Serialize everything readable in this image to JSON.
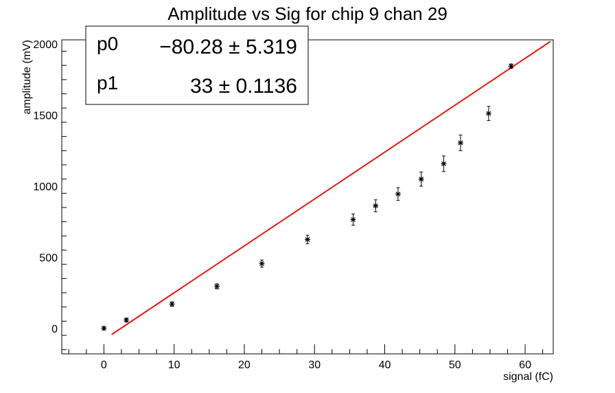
{
  "chart_data": {
    "type": "scatter",
    "title": "Amplitude vs Sig for chip 9 chan 29",
    "xlabel": "signal (fC)",
    "ylabel": "amplitude (mV)",
    "xlim": [
      -6,
      64
    ],
    "ylim": [
      -180,
      2030
    ],
    "x_ticks": [
      0,
      10,
      20,
      30,
      40,
      50,
      60
    ],
    "x_tick_labels": [
      "0",
      "10",
      "20",
      "30",
      "40",
      "50",
      "60"
    ],
    "y_ticks": [
      0,
      500,
      1000,
      1500,
      2000
    ],
    "y_tick_labels": [
      "0",
      "500",
      "1000",
      "1500",
      "2000"
    ],
    "grid": false,
    "series": [
      {
        "type": "scatter-errorbars",
        "marker": "asterisk",
        "color": "#000000",
        "points": [
          {
            "x": 0.0,
            "y": 0,
            "err": 10
          },
          {
            "x": 3.2,
            "y": 58,
            "err": 12
          },
          {
            "x": 9.7,
            "y": 170,
            "err": 15
          },
          {
            "x": 16.1,
            "y": 295,
            "err": 18
          },
          {
            "x": 22.5,
            "y": 455,
            "err": 25
          },
          {
            "x": 29.0,
            "y": 625,
            "err": 30
          },
          {
            "x": 35.5,
            "y": 765,
            "err": 40
          },
          {
            "x": 38.7,
            "y": 862,
            "err": 42
          },
          {
            "x": 41.9,
            "y": 945,
            "err": 45
          },
          {
            "x": 45.2,
            "y": 1050,
            "err": 50
          },
          {
            "x": 48.4,
            "y": 1158,
            "err": 55
          },
          {
            "x": 50.8,
            "y": 1305,
            "err": 55
          },
          {
            "x": 54.8,
            "y": 1512,
            "err": 50
          },
          {
            "x": 58.0,
            "y": 1845,
            "err": 15
          }
        ]
      },
      {
        "type": "fit-line",
        "color": "#e8170f",
        "p0": -80.28,
        "p1": 33,
        "x_range": [
          1.1,
          63.6
        ]
      }
    ],
    "stats_box": {
      "rows": [
        {
          "name": "p0",
          "value": "−80.28 ± 5.319"
        },
        {
          "name": "p1",
          "value": "33 ± 0.1136"
        }
      ]
    }
  }
}
